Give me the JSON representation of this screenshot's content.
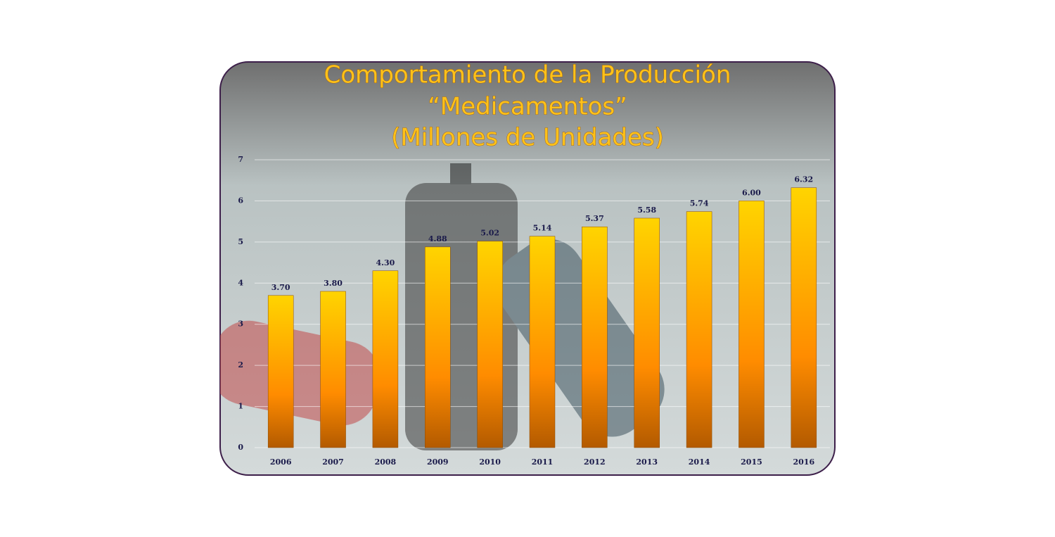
{
  "chart_data": {
    "type": "bar",
    "title": [
      "Comportamiento de la Producción",
      "“Medicamentos”",
      "(Millones de Unidades)"
    ],
    "categories": [
      "2006",
      "2007",
      "2008",
      "2009",
      "2010",
      "2011",
      "2012",
      "2013",
      "2014",
      "2015",
      "2016"
    ],
    "values": [
      3.7,
      3.8,
      4.3,
      4.88,
      5.02,
      5.14,
      5.37,
      5.58,
      5.74,
      6.0,
      6.32
    ],
    "value_labels": [
      "3.70",
      "3.80",
      "4.30",
      "4.88",
      "5.02",
      "5.14",
      "5.37",
      "5.58",
      "5.74",
      "6.00",
      "6.32"
    ],
    "color": "#ffa500",
    "ylim": [
      0,
      7
    ],
    "yticks": [
      0,
      1,
      2,
      3,
      4,
      5,
      6,
      7
    ],
    "grid": true
  }
}
